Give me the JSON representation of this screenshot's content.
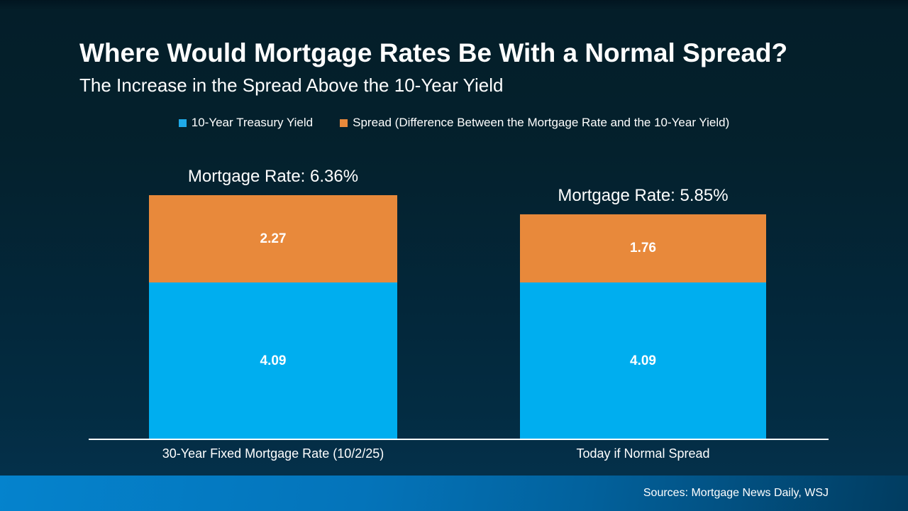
{
  "header": {
    "title": "Where Would Mortgage Rates Be With a Normal Spread?",
    "subtitle": "The Increase in the Spread Above the 10-Year Yield"
  },
  "legend": [
    {
      "label": "10-Year Treasury Yield",
      "color": "#1fa9e8"
    },
    {
      "label": "Spread (Difference Between the Mortgage Rate and the 10-Year Yield)",
      "color": "#e8893b"
    }
  ],
  "chart_data": {
    "type": "bar",
    "stacked": true,
    "title": "Where Would Mortgage Rates Be With a Normal Spread?",
    "subtitle": "The Increase in the Spread Above the 10-Year Yield",
    "categories": [
      "30-Year Fixed Mortgage Rate (10/2/25)",
      "Today if Normal Spread"
    ],
    "series": [
      {
        "name": "10-Year Treasury Yield",
        "color": "#00aeef",
        "values": [
          4.09,
          4.09
        ]
      },
      {
        "name": "Spread (Difference Between the Mortgage Rate and the 10-Year Yield)",
        "color": "#e8893b",
        "values": [
          2.27,
          1.76
        ]
      }
    ],
    "totals": [
      "Mortgage Rate: 6.36%",
      "Mortgage Rate: 5.85%"
    ],
    "total_values": [
      6.36,
      5.85
    ],
    "ylim": [
      0,
      7
    ],
    "grid": false,
    "legend_position": "top"
  },
  "footer": {
    "sources": "Sources: Mortgage News Daily, WSJ"
  },
  "colors": {
    "background_top": "#04212d",
    "background_bottom": "#04304a",
    "bar_blue": "#00aeef",
    "bar_orange": "#e8893b",
    "axis_line": "#ffffff",
    "footer_left": "#0583cd",
    "footer_right": "#013c60",
    "text": "#ffffff"
  }
}
